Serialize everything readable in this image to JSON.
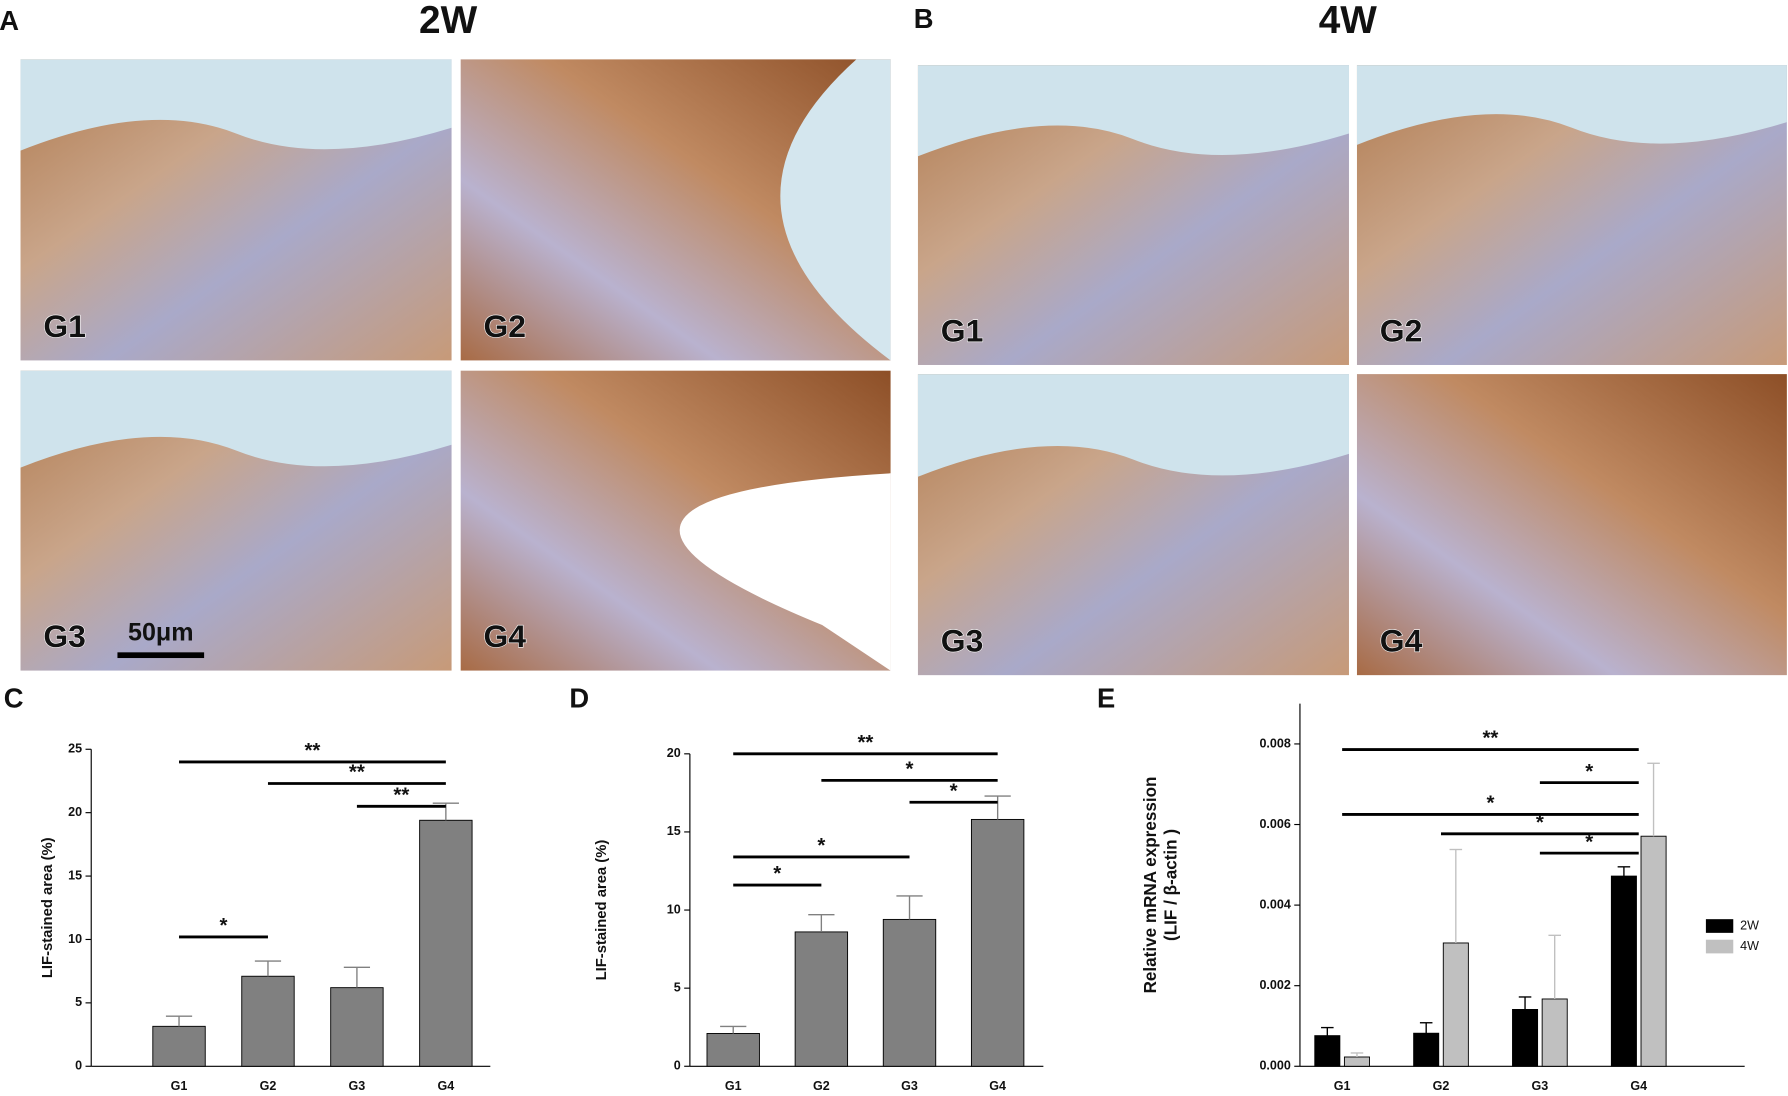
{
  "images": [
    {
      "letter": "A",
      "title": "2W",
      "tiles": [
        "G1",
        "G2",
        "G3",
        "G4"
      ],
      "scale_bar": "50μm"
    },
    {
      "letter": "B",
      "title": "4W",
      "tiles": [
        "G1",
        "G2",
        "G3",
        "G4"
      ]
    }
  ],
  "chart_data": [
    {
      "type": "bar",
      "panel_label": "C",
      "ylabel": "LIF-stained area (%)",
      "categories": [
        "G1",
        "G2",
        "G3",
        "G4"
      ],
      "values": [
        3.15,
        7.1,
        6.2,
        19.4
      ],
      "errors": [
        0.8,
        1.2,
        1.6,
        1.35
      ],
      "color": "#808080",
      "ylim": [
        0,
        25
      ],
      "yticks": [
        0,
        5,
        10,
        15,
        20,
        25
      ],
      "annotations": [
        {
          "label": "**",
          "from": "G1",
          "to": "G4",
          "y": 24.0
        },
        {
          "label": "**",
          "from": "G2",
          "to": "G4",
          "y": 22.3
        },
        {
          "label": "**",
          "from": "G3",
          "to": "G4",
          "y": 20.5
        },
        {
          "label": "*",
          "from": "G1",
          "to": "G2",
          "y": 10.2
        }
      ]
    },
    {
      "type": "bar",
      "panel_label": "D",
      "ylabel": "LIF-stained area (%)",
      "categories": [
        "G1",
        "G2",
        "G3",
        "G4"
      ],
      "values": [
        2.1,
        8.6,
        9.4,
        15.8
      ],
      "errors": [
        0.45,
        1.1,
        1.5,
        1.5
      ],
      "color": "#808080",
      "ylim": [
        0,
        20
      ],
      "yticks": [
        0,
        5,
        10,
        15,
        20
      ],
      "annotations": [
        {
          "label": "**",
          "from": "G1",
          "to": "G4",
          "y": 20.0
        },
        {
          "label": "*",
          "from": "G2",
          "to": "G4",
          "y": 18.3
        },
        {
          "label": "*",
          "from": "G3",
          "to": "G4",
          "y": 16.9
        },
        {
          "label": "*",
          "from": "G1",
          "to": "G3",
          "y": 13.4
        },
        {
          "label": "*",
          "from": "G1",
          "to": "G2",
          "y": 11.6
        }
      ]
    },
    {
      "type": "bar",
      "panel_label": "E",
      "ylabel": [
        "Relative mRNA expression",
        "(LIF / β-actin )"
      ],
      "categories": [
        "G1",
        "G2",
        "G3",
        "G4"
      ],
      "series": [
        {
          "name": "2W",
          "color": "#000000",
          "values": [
            0.00076,
            0.00082,
            0.00141,
            0.00472
          ],
          "errors": [
            0.0002,
            0.00026,
            0.00031,
            0.00023
          ]
        },
        {
          "name": "4W",
          "color": "#c0c0c0",
          "values": [
            0.00023,
            0.00306,
            0.00167,
            0.00571
          ],
          "errors": [
            0.0001,
            0.00232,
            0.00158,
            0.00181
          ]
        }
      ],
      "ylim": [
        0,
        0.009
      ],
      "yticks": [
        {
          "value": 0,
          "label": "0.000"
        },
        {
          "value": 0.002,
          "label": "0.002"
        },
        {
          "value": 0.004,
          "label": "0.004"
        },
        {
          "value": 0.006,
          "label": "0.006"
        },
        {
          "value": 0.008,
          "label": "0.008"
        }
      ],
      "legend": "right",
      "annotations": [
        {
          "label": "**",
          "from": "G1",
          "to": "G4",
          "y": 0.00786
        },
        {
          "label": "*",
          "from": "G3",
          "to": "G4",
          "y": 0.00704
        },
        {
          "label": "*",
          "from": "G1",
          "to": "G4",
          "y": 0.00625
        },
        {
          "label": "*",
          "from": "G2",
          "to": "G4",
          "y": 0.00577
        },
        {
          "label": "*",
          "from": "G3",
          "to": "G4",
          "y": 0.00529
        }
      ]
    }
  ]
}
